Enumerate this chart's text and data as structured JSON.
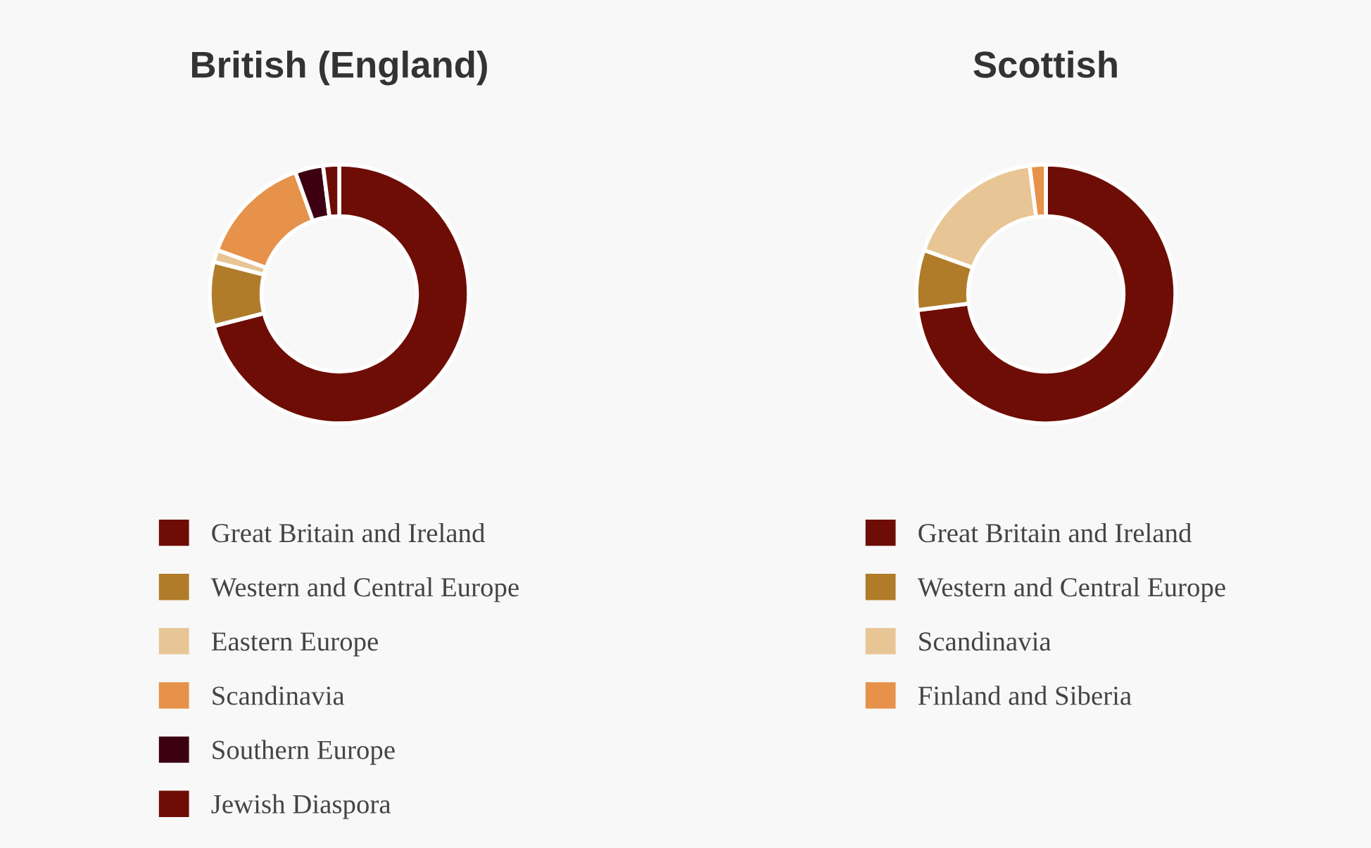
{
  "chart_data": [
    {
      "type": "donut",
      "title": "British (England)",
      "categories": [
        "Great Britain and Ireland",
        "Western and Central Europe",
        "Eastern Europe",
        "Scandinavia",
        "Southern Europe",
        "Jewish Diaspora"
      ],
      "values": [
        71,
        8,
        1.5,
        14,
        3.5,
        2
      ],
      "colors": [
        "#6e0d05",
        "#b07c2a",
        "#e8c595",
        "#e6924a",
        "#3d0012",
        "#6e0d05"
      ],
      "legend": "bottom"
    },
    {
      "type": "donut",
      "title": "Scottish",
      "categories": [
        "Great Britain and Ireland",
        "Western and Central Europe",
        "Scandinavia",
        "Finland and Siberia"
      ],
      "values": [
        73,
        7.5,
        17.5,
        2
      ],
      "colors": [
        "#6e0d05",
        "#b07c2a",
        "#e8c595",
        "#e6924a"
      ],
      "legend": "bottom"
    }
  ]
}
